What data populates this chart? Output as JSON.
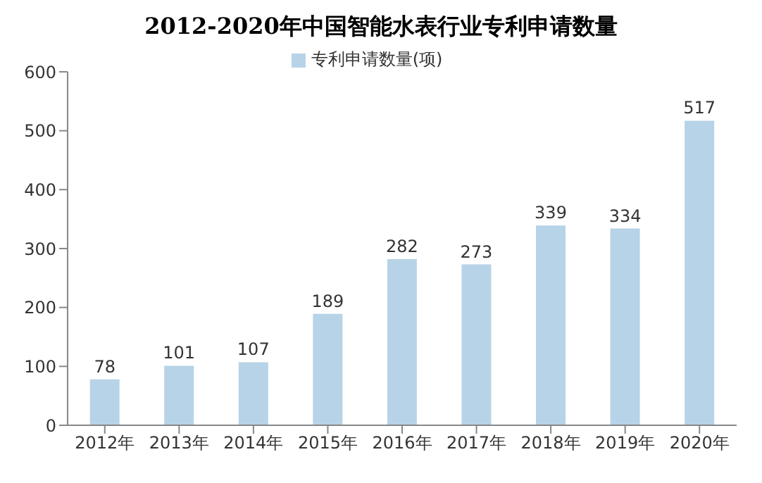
{
  "chart_data": {
    "type": "bar",
    "title": "2012-2020年中国智能水表行业专利申请数量",
    "categories": [
      "2012年",
      "2013年",
      "2014年",
      "2015年",
      "2016年",
      "2017年",
      "2018年",
      "2019年",
      "2020年"
    ],
    "series": [
      {
        "name": "专利申请数量(项)",
        "color": "#b7d3e7",
        "values": [
          78,
          101,
          107,
          189,
          282,
          273,
          339,
          334,
          517
        ]
      }
    ],
    "ylim": [
      0,
      600
    ],
    "yticks": [
      0,
      100,
      200,
      300,
      400,
      500,
      600
    ],
    "grid": false,
    "legend": "top",
    "data_labels": true
  }
}
